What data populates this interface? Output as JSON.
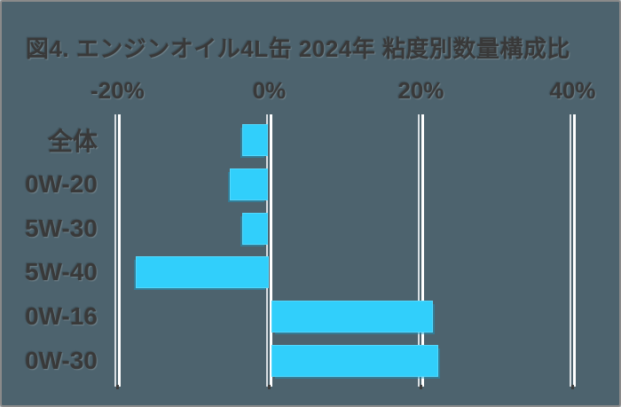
{
  "chart_data": {
    "type": "bar",
    "orientation": "horizontal",
    "title": "図4. エンジンオイル4L缶 2024年 粘度別数量構成比",
    "categories": [
      "全体",
      "0W-20",
      "5W-30",
      "5W-40",
      "0W-16",
      "0W-30"
    ],
    "values": [
      -3.4,
      -5.1,
      -3.5,
      -17.5,
      21.4,
      22.0
    ],
    "value_unit": "percent",
    "x_ticks": [
      -20,
      0,
      20,
      40
    ],
    "x_tick_labels": [
      "-20%",
      "0%",
      "20%",
      "40%"
    ],
    "xlim": [
      -22,
      44
    ],
    "grid": "vertical white gridlines at each x tick, small dark tick marks below",
    "legend": "none",
    "zero_baseline": "bars diverge left (negative) and right (positive) of 0% axis"
  },
  "colors": {
    "background": "#4D636E",
    "frame_border": "#8A8A8A",
    "bar": "#31CFFB",
    "bar_highlight": "#53D8FD",
    "bar_shadow": "#1A9AC4",
    "gridline": "#FFFFFF",
    "tick_mark": "#3E3E3E",
    "text": "#393939"
  }
}
